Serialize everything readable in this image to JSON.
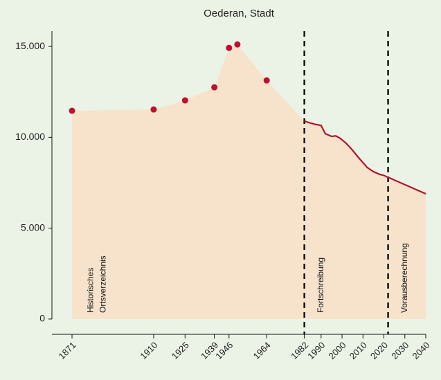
{
  "chart_data": {
    "type": "area-line",
    "title": "Oederan, Stadt",
    "points": {
      "x": [
        1871,
        1910,
        1925,
        1939,
        1946,
        1950,
        1964
      ],
      "values": [
        11460,
        11530,
        12030,
        12750,
        14920,
        15110,
        13130
      ],
      "color": "#c0102e"
    },
    "line": {
      "x": [
        1982,
        1985,
        1987,
        1990,
        1992,
        1995,
        1997,
        1999,
        2002,
        2005,
        2008,
        2012,
        2015,
        2018,
        2020,
        2022,
        2040
      ],
      "values": [
        10890,
        10780,
        10720,
        10650,
        10200,
        10050,
        10080,
        9950,
        9670,
        9290,
        8870,
        8340,
        8110,
        7960,
        7900,
        7800,
        6890
      ],
      "color": "#b5112b"
    },
    "area_color": "#f7e3cc",
    "vlines": [
      1982,
      2022
    ],
    "annotations": [
      {
        "x": 1880,
        "lines": [
          "Historisches",
          "Ortsverzeichnis"
        ]
      },
      {
        "x": 1990,
        "lines": [
          "Fortschreibung"
        ]
      },
      {
        "x": 2030,
        "lines": [
          "Vorausberechnung"
        ]
      }
    ],
    "xlim": [
      1861.4,
      2040
    ],
    "xticks": [
      1871,
      1910,
      1925,
      1939,
      1946,
      1964,
      1982,
      1990,
      2000,
      2010,
      2020,
      2030,
      2040
    ],
    "ylim": [
      -840,
      15840
    ],
    "yticks": [
      {
        "value": 0,
        "label": "0"
      },
      {
        "value": 5000,
        "label": "5.000"
      },
      {
        "value": 10000,
        "label": "10.000"
      },
      {
        "value": 15000,
        "label": "15.000"
      }
    ]
  }
}
